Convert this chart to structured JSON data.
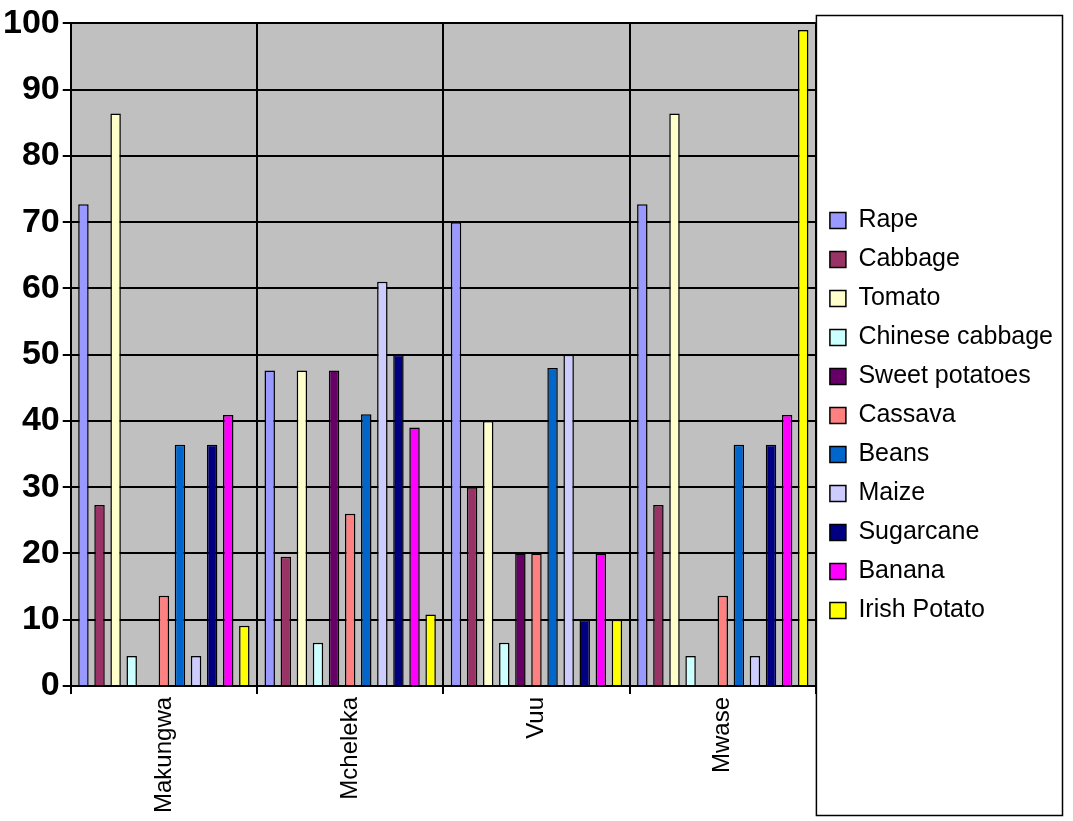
{
  "chart_data": {
    "type": "bar",
    "categories": [
      "Makungwa",
      "Mcheleka",
      "Vuu",
      "Mwase"
    ],
    "series": [
      {
        "name": "Rape",
        "color": "#9999ff",
        "values": [
          72.7,
          47.6,
          70,
          72.7
        ]
      },
      {
        "name": "Cabbage",
        "color": "#993366",
        "values": [
          27.3,
          19.5,
          30,
          27.3
        ]
      },
      {
        "name": "Tomato",
        "color": "#ffffcc",
        "values": [
          86.4,
          47.6,
          40,
          86.4
        ]
      },
      {
        "name": "Chinese cabbage",
        "color": "#ccffff",
        "values": [
          4.5,
          6.5,
          6.5,
          4.5
        ]
      },
      {
        "name": "Sweet potatoes",
        "color": "#660066",
        "values": [
          0,
          47.6,
          20,
          0
        ]
      },
      {
        "name": "Cassava",
        "color": "#ff8080",
        "values": [
          13.6,
          26,
          20,
          13.6
        ]
      },
      {
        "name": "Beans",
        "color": "#0066cc",
        "values": [
          36.4,
          41,
          48,
          36.4
        ]
      },
      {
        "name": "Maize",
        "color": "#ccccff",
        "values": [
          4.5,
          61,
          50,
          4.5
        ]
      },
      {
        "name": "Sugarcane",
        "color": "#000080",
        "values": [
          36.4,
          50,
          10,
          36.4
        ]
      },
      {
        "name": "Banana",
        "color": "#ff00ff",
        "values": [
          40.9,
          39,
          20,
          40.9
        ]
      },
      {
        "name": "Irish Potato",
        "color": "#ffff00",
        "values": [
          9.1,
          10.8,
          10,
          99
        ]
      }
    ],
    "ylim": [
      0,
      100
    ],
    "yticks": [
      0,
      10,
      20,
      30,
      40,
      50,
      60,
      70,
      80,
      90,
      100
    ],
    "grid": true,
    "legend": "right"
  }
}
